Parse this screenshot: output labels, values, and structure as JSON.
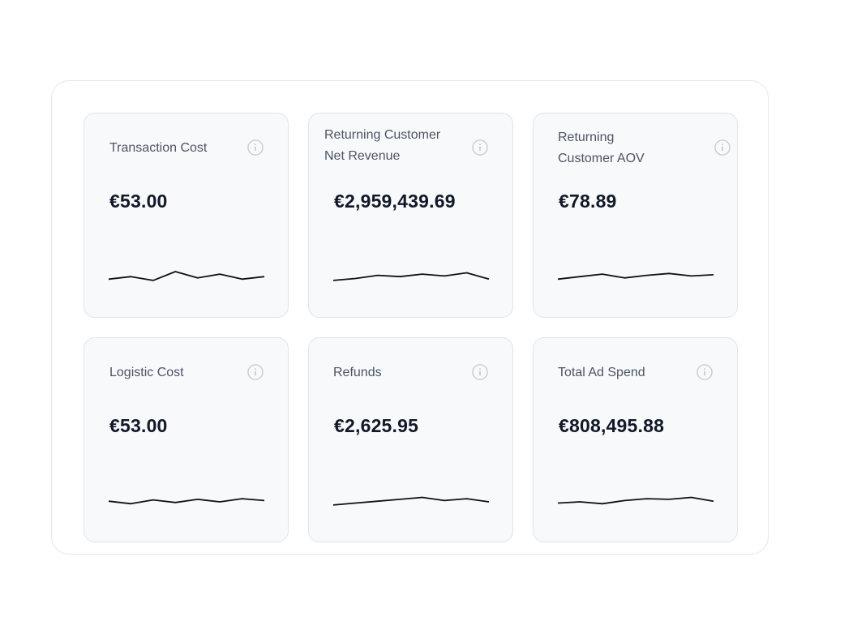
{
  "cards": [
    {
      "title_lines": [
        "Transaction Cost"
      ],
      "value": "€53.00",
      "icon": "info-icon",
      "sparkline": [
        0.3,
        0.5,
        0.2,
        0.9,
        0.4,
        0.7,
        0.3,
        0.5
      ]
    },
    {
      "title_lines": [
        "Returning Customer",
        "Net Revenue"
      ],
      "value": "€2,959,439.69",
      "icon": "info-icon",
      "sparkline": [
        0.2,
        0.35,
        0.6,
        0.5,
        0.7,
        0.55,
        0.8,
        0.3
      ]
    },
    {
      "title_lines": [
        "Returning",
        "Customer AOV"
      ],
      "value": "€78.89",
      "icon": "info-icon",
      "sparkline": [
        0.3,
        0.5,
        0.7,
        0.4,
        0.6,
        0.75,
        0.55,
        0.65
      ]
    },
    {
      "title_lines": [
        "Logistic Cost"
      ],
      "value": "€53.00",
      "icon": "info-icon",
      "sparkline": [
        0.5,
        0.3,
        0.6,
        0.4,
        0.65,
        0.45,
        0.7,
        0.55
      ]
    },
    {
      "title_lines": [
        "Refunds"
      ],
      "value": "€2,625.95",
      "icon": "info-icon",
      "sparkline": [
        0.2,
        0.35,
        0.5,
        0.65,
        0.8,
        0.55,
        0.7,
        0.45
      ]
    },
    {
      "title_lines": [
        "Total Ad Spend"
      ],
      "value": "€808,495.88",
      "icon": "info-icon",
      "sparkline": [
        0.35,
        0.45,
        0.3,
        0.55,
        0.7,
        0.65,
        0.8,
        0.5
      ]
    }
  ],
  "colors": {
    "panel_border": "#e4e6ea",
    "card_background": "#f8f9fb",
    "card_border": "#e1e4e8",
    "title_text": "#4b5563",
    "value_text": "#111827",
    "sparkline_stroke": "#111111",
    "icon_stroke": "#c4c8ce"
  }
}
